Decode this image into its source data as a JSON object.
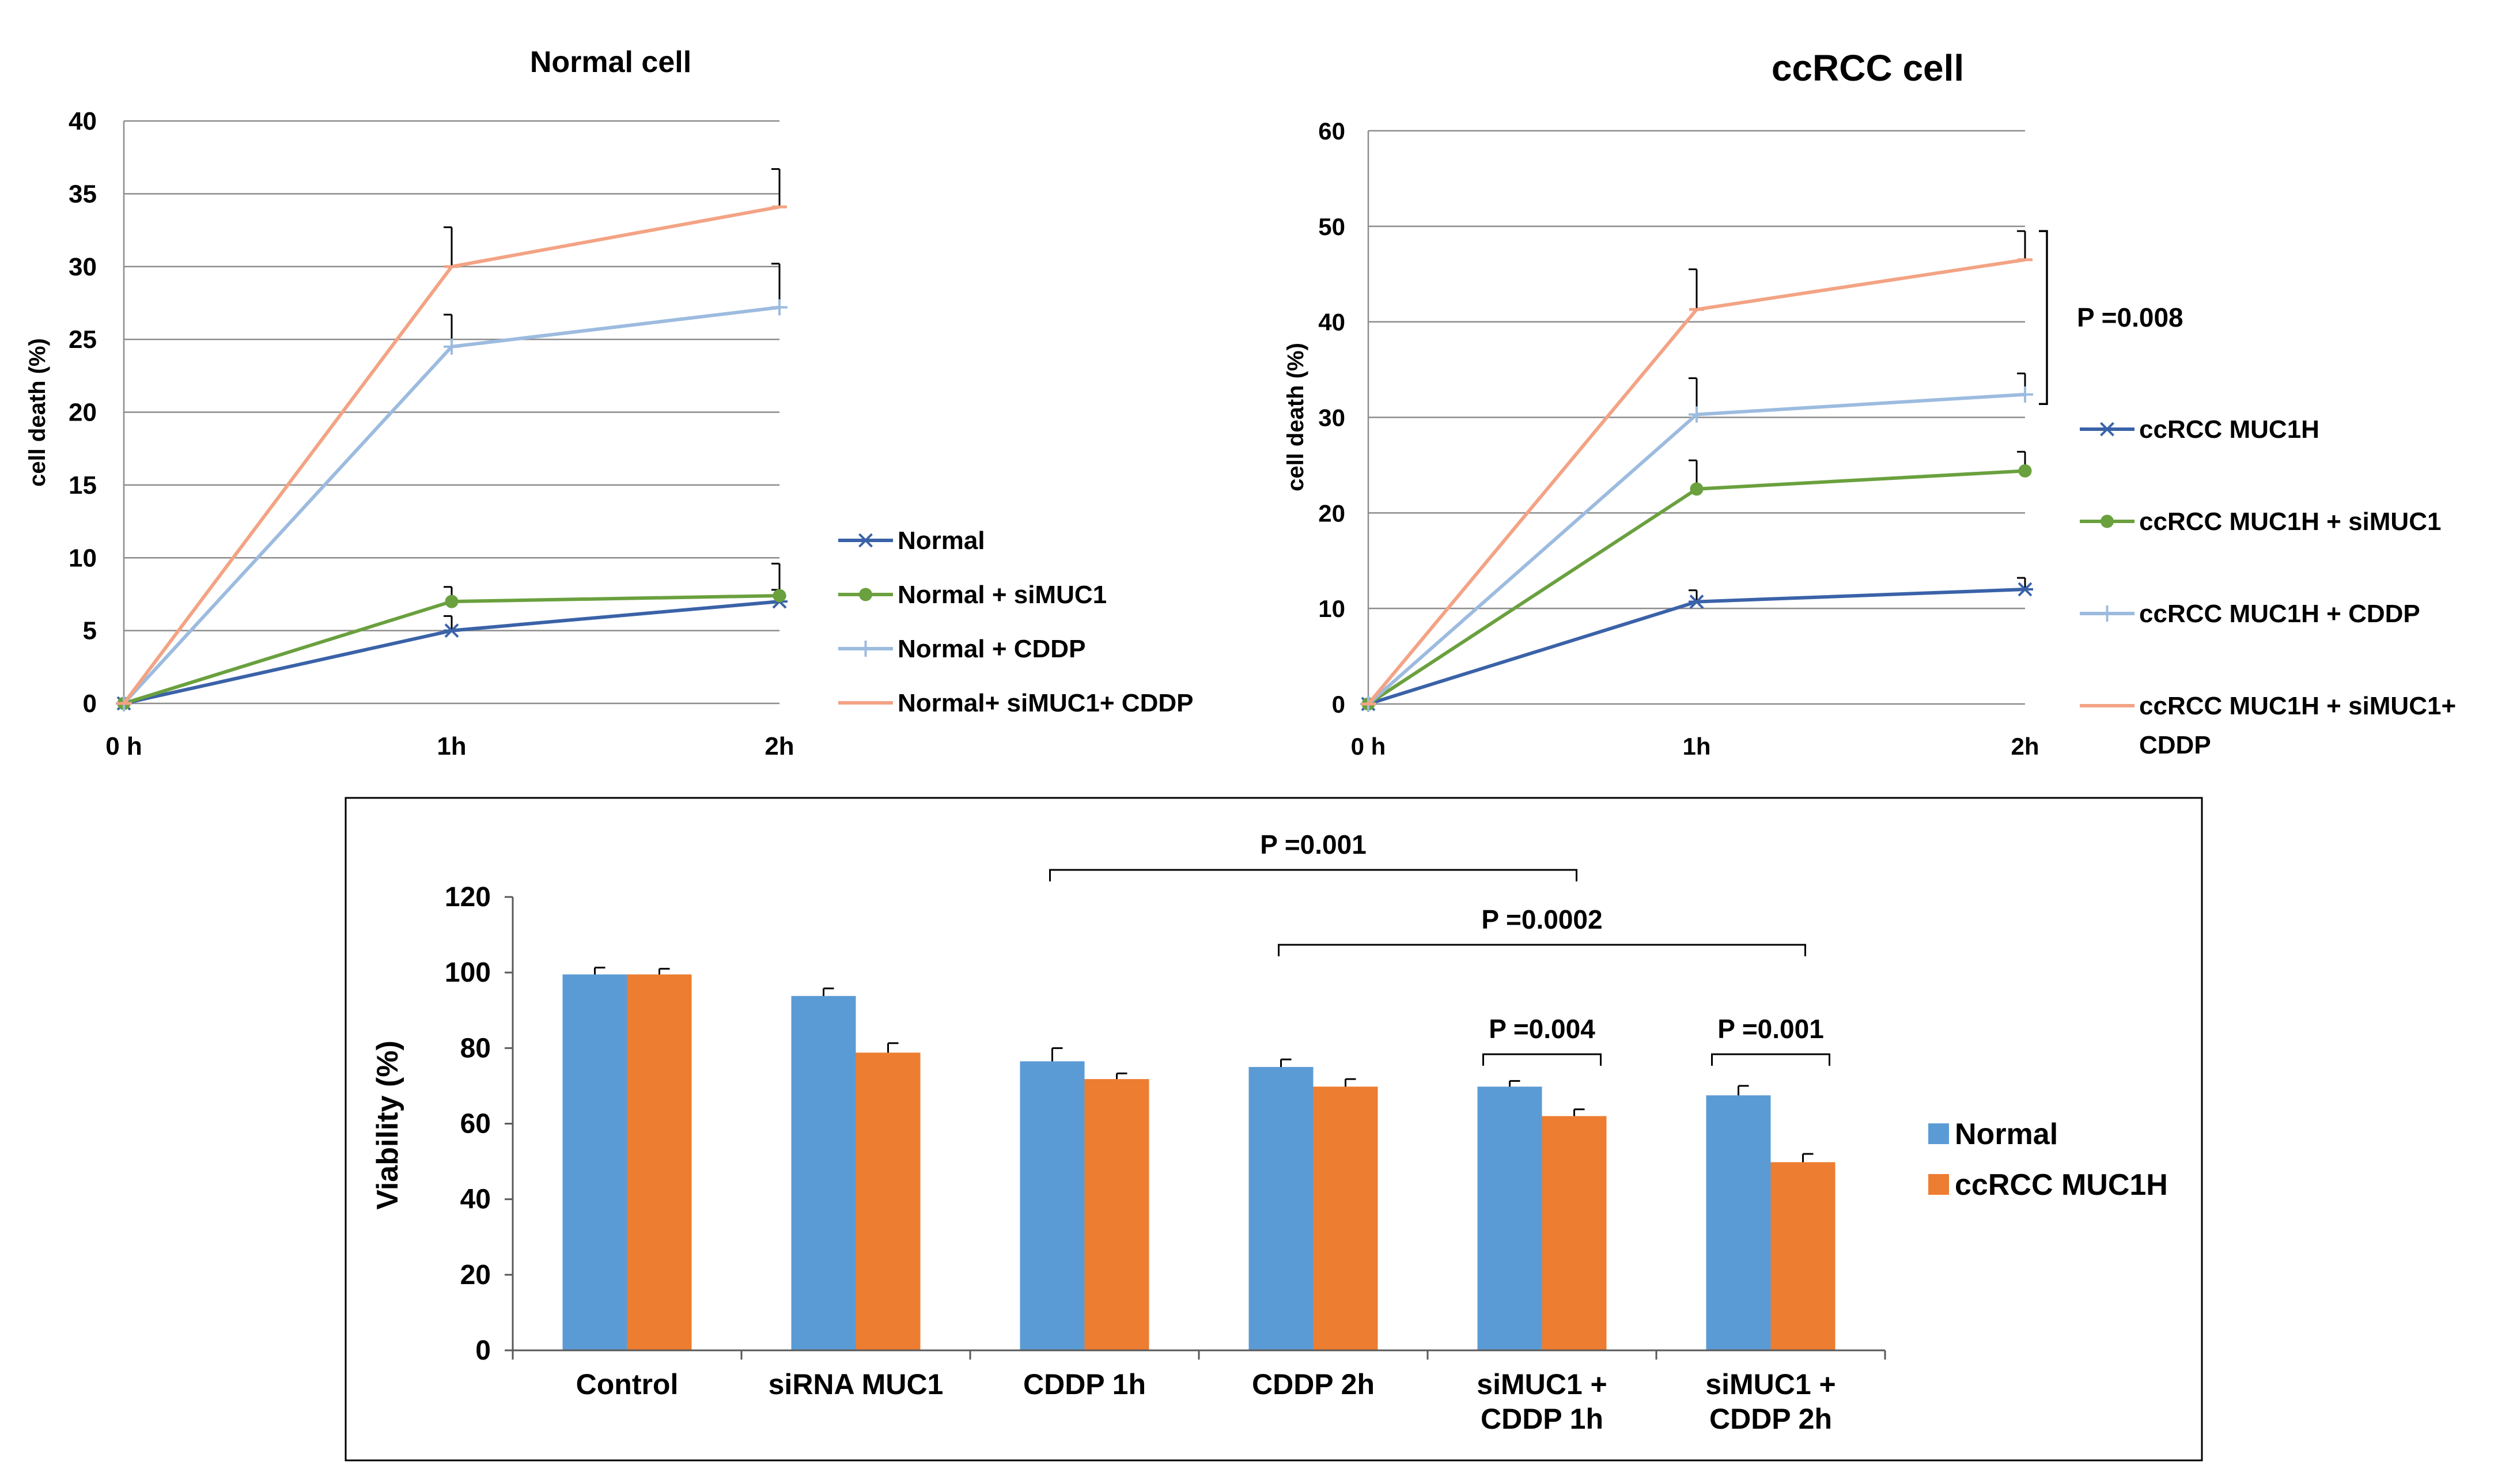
{
  "chart_data": [
    {
      "type": "line",
      "title": "Normal cell",
      "xlabel": "",
      "ylabel": "cell death (%)",
      "categories": [
        "0 h",
        "1h",
        "2h"
      ],
      "ylim": [
        0,
        40
      ],
      "yticks": [
        0,
        5,
        10,
        15,
        20,
        25,
        30,
        35,
        40
      ],
      "series": [
        {
          "name": "Normal",
          "color": "#3a62a8",
          "marker": "star",
          "values": [
            0,
            5,
            7
          ],
          "errors": [
            0,
            1,
            0.8
          ]
        },
        {
          "name": "Normal + siMUC1",
          "color": "#6aa03e",
          "marker": "circle",
          "values": [
            0,
            7,
            7.4
          ],
          "errors": [
            0,
            1,
            2.2
          ]
        },
        {
          "name": "Normal + CDDP",
          "color": "#9cbbdf",
          "marker": "plus",
          "values": [
            0,
            24.5,
            27.2
          ],
          "errors": [
            0,
            2.2,
            3
          ]
        },
        {
          "name": "Normal+ siMUC1+ CDDP",
          "color": "#f3a384",
          "marker": "dash",
          "values": [
            0,
            30,
            34.1
          ],
          "errors": [
            0,
            2.7,
            2.6
          ]
        }
      ]
    },
    {
      "type": "line",
      "title": "ccRCC cell",
      "xlabel": "",
      "ylabel": "cell death (%)",
      "categories": [
        "0 h",
        "1h",
        "2h"
      ],
      "ylim": [
        0,
        60
      ],
      "yticks": [
        0,
        10,
        20,
        30,
        40,
        50,
        60
      ],
      "annotation": "P =0.008",
      "series": [
        {
          "name": "ccRCC MUC1H",
          "color": "#3a62a8",
          "marker": "star",
          "values": [
            0,
            10.7,
            12
          ],
          "errors": [
            0,
            1.2,
            1.2
          ]
        },
        {
          "name": "ccRCC MUC1H + siMUC1",
          "color": "#6aa03e",
          "marker": "circle",
          "values": [
            0,
            22.5,
            24.4
          ],
          "errors": [
            0,
            3,
            2
          ]
        },
        {
          "name": "ccRCC MUC1H + CDDP",
          "color": "#9cbbdf",
          "marker": "plus",
          "values": [
            0,
            30.3,
            32.4
          ],
          "errors": [
            0,
            3.8,
            2.2
          ]
        },
        {
          "name": "ccRCC MUC1H + siMUC1+ CDDP",
          "color": "#f3a384",
          "marker": "dash",
          "values": [
            0,
            41.3,
            46.5
          ],
          "errors": [
            0,
            4.2,
            3
          ]
        }
      ]
    },
    {
      "type": "bar",
      "title": "",
      "xlabel": "",
      "ylabel": "Viability (%)",
      "categories": [
        "Control",
        "siRNA MUC1",
        "CDDP 1h",
        "CDDP 2h",
        "siMUC1 + CDDP 1h",
        "siMUC1 + CDDP 2h"
      ],
      "ylim": [
        0,
        120
      ],
      "yticks": [
        0,
        20,
        40,
        60,
        80,
        100,
        120
      ],
      "series": [
        {
          "name": "Normal",
          "color": "#5b9bd5",
          "values": [
            99.5,
            93.8,
            76.5,
            75,
            69.8,
            67.5
          ],
          "errors": [
            1.8,
            2,
            3.5,
            2,
            1.5,
            2.5
          ]
        },
        {
          "name": "ccRCC MUC1H",
          "color": "#ed7d31",
          "values": [
            99.5,
            78.8,
            71.8,
            69.8,
            62,
            49.8
          ],
          "errors": [
            1.5,
            2.5,
            1.5,
            2,
            1.8,
            2.2
          ]
        }
      ],
      "annotations": [
        {
          "label": "P =0.001",
          "from": 2,
          "to": 4
        },
        {
          "label": "P =0.0002",
          "from": 3,
          "to": 5
        },
        {
          "label": "P =0.004",
          "from": 4,
          "to": 4
        },
        {
          "label": "P =0.001",
          "from": 5,
          "to": 5
        }
      ]
    }
  ]
}
